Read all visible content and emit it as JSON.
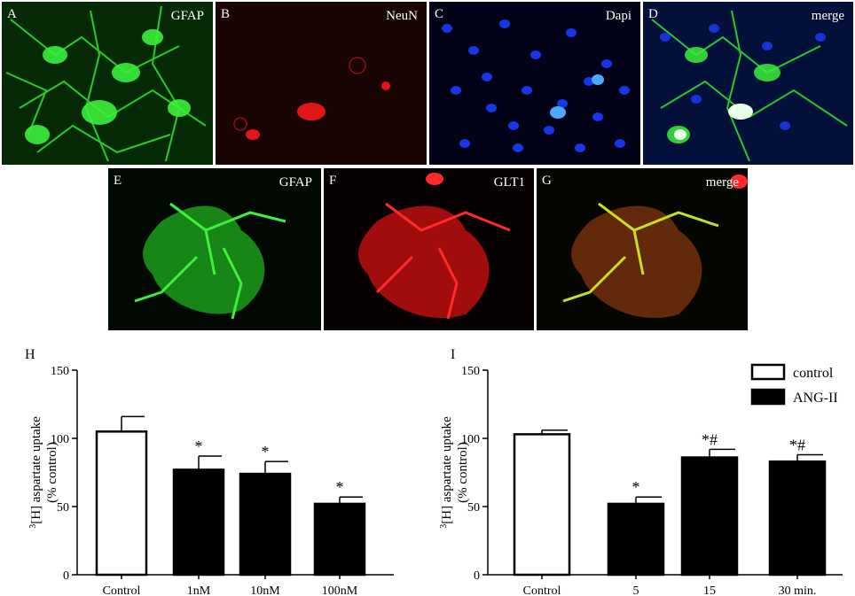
{
  "panels_top": [
    {
      "letter": "A",
      "label": "GFAP"
    },
    {
      "letter": "B",
      "label": "NeuN"
    },
    {
      "letter": "C",
      "label": "Dapi"
    },
    {
      "letter": "D",
      "label": "merge"
    }
  ],
  "panels_mid": [
    {
      "letter": "E",
      "label": "GFAP"
    },
    {
      "letter": "F",
      "label": "GLT1"
    },
    {
      "letter": "G",
      "label": "merge"
    }
  ],
  "chart_data": [
    {
      "panel": "H",
      "type": "bar",
      "ylabel_sup": "3",
      "ylabel_main": "[H] aspartate uptake",
      "ylabel_sub": "(% control)",
      "ylim": [
        0,
        150
      ],
      "yticks": [
        "0",
        "50",
        "100",
        "150"
      ],
      "categories": [
        "Control",
        "1nM",
        "10nM",
        "100nM"
      ],
      "values": [
        105,
        77,
        74,
        52
      ],
      "errors": [
        11,
        10,
        9,
        5
      ],
      "fills": [
        "white",
        "black",
        "black",
        "black"
      ],
      "annotations": [
        "",
        "*",
        "*",
        "*"
      ]
    },
    {
      "panel": "I",
      "type": "bar",
      "ylabel_sup": "3",
      "ylabel_main": "[H] aspartate uptake",
      "ylabel_sub": "(% control)",
      "ylim": [
        0,
        150
      ],
      "yticks": [
        "0",
        "50",
        "100",
        "150"
      ],
      "categories": [
        "Control",
        "5",
        "15",
        "30  min."
      ],
      "values": [
        103,
        52,
        86,
        83
      ],
      "errors": [
        3,
        5,
        6,
        5
      ],
      "fills": [
        "white",
        "black",
        "black",
        "black"
      ],
      "annotations": [
        "",
        "*",
        "*#",
        "*#"
      ],
      "legend": [
        {
          "name": "control",
          "fill": "white"
        },
        {
          "name": "ANG-II",
          "fill": "black"
        }
      ],
      "legend_position": "top-right"
    }
  ]
}
